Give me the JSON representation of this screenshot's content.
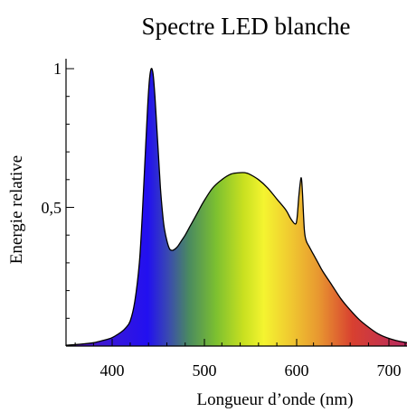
{
  "chart_data": {
    "type": "area",
    "title": "Spectre LED blanche",
    "xlabel": "Longueur d’onde (nm)",
    "ylabel": "Energie relative",
    "xlim": [
      350,
      722
    ],
    "ylim": [
      0,
      1
    ],
    "x_ticks": [
      {
        "value": 400,
        "label": "400"
      },
      {
        "value": 500,
        "label": "500"
      },
      {
        "value": 600,
        "label": "600"
      },
      {
        "value": 700,
        "label": "700"
      }
    ],
    "y_ticks": [
      {
        "value": 1,
        "label": "1"
      },
      {
        "value": 0.5,
        "label": "0,5"
      }
    ],
    "grid": false,
    "fill": "visible-spectrum gradient",
    "series": [
      {
        "x": [
          350,
          360,
          370,
          380,
          390,
          400,
          410,
          415,
          420,
          425,
          430,
          433,
          436,
          439,
          441,
          443,
          445,
          447,
          449,
          451,
          453,
          455,
          457,
          460,
          463,
          466,
          469,
          472,
          476,
          480,
          485,
          490,
          495,
          500,
          510,
          520,
          530,
          540,
          545,
          550,
          560,
          570,
          580,
          590,
          595,
          600,
          602,
          604,
          606,
          607,
          608,
          610,
          612,
          615,
          620,
          625,
          630,
          640,
          650,
          660,
          670,
          680,
          690,
          700,
          710,
          722
        ],
        "y": [
          0.003,
          0.005,
          0.008,
          0.012,
          0.02,
          0.03,
          0.05,
          0.065,
          0.09,
          0.16,
          0.3,
          0.46,
          0.66,
          0.86,
          0.96,
          1.0,
          0.98,
          0.9,
          0.79,
          0.68,
          0.57,
          0.49,
          0.43,
          0.38,
          0.35,
          0.345,
          0.35,
          0.36,
          0.38,
          0.4,
          0.43,
          0.46,
          0.49,
          0.52,
          0.57,
          0.6,
          0.62,
          0.625,
          0.625,
          0.62,
          0.6,
          0.57,
          0.53,
          0.49,
          0.46,
          0.44,
          0.46,
          0.54,
          0.6,
          0.6,
          0.55,
          0.42,
          0.38,
          0.36,
          0.33,
          0.3,
          0.27,
          0.22,
          0.17,
          0.13,
          0.095,
          0.068,
          0.045,
          0.03,
          0.02,
          0.012
        ]
      }
    ]
  }
}
